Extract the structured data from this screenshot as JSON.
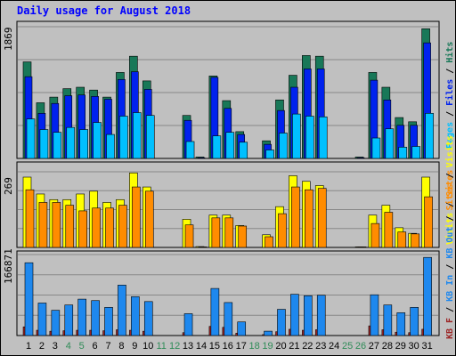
{
  "title": "Daily usage for August 2018",
  "colors": {
    "background": "#c0c0c0",
    "title": "#0000ff",
    "pages": "#00c0ff",
    "files": "#0022ee",
    "hits": "#187858",
    "visits": "#ffff00",
    "sites": "#ff8c00",
    "kb_in": "#1e88ee",
    "kb_out": "#9c2424",
    "weekday_label": "#000000",
    "weekend_label": "#2e8b57"
  },
  "chart_data": [
    {
      "type": "bar",
      "name": "pages-files-hits",
      "ylim": [
        0,
        1869
      ],
      "top_label": "1869",
      "legend": [
        {
          "text": "Pages",
          "color": "#00c0ff"
        },
        {
          "text": " / ",
          "color": "#000000"
        },
        {
          "text": "Files",
          "color": "#0022ee"
        },
        {
          "text": " / ",
          "color": "#000000"
        },
        {
          "text": "Hits",
          "color": "#187858"
        }
      ],
      "categories": [
        "1",
        "2",
        "3",
        "4",
        "5",
        "6",
        "7",
        "8",
        "9",
        "10",
        "11",
        "12",
        "13",
        "14",
        "15",
        "16",
        "17",
        "18",
        "19",
        "20",
        "21",
        "22",
        "23",
        "24",
        "25",
        "26",
        "27",
        "28",
        "29",
        "30",
        "31"
      ],
      "series": [
        {
          "name": "Hits",
          "values": [
            1370,
            790,
            870,
            990,
            1010,
            970,
            870,
            1220,
            1450,
            1100,
            0,
            0,
            610,
            20,
            1170,
            820,
            380,
            0,
            250,
            830,
            1180,
            1460,
            1450,
            0,
            0,
            20,
            1220,
            1010,
            580,
            520,
            1840
          ]
        },
        {
          "name": "Files",
          "values": [
            1160,
            640,
            780,
            890,
            900,
            880,
            840,
            1120,
            1230,
            980,
            0,
            0,
            540,
            10,
            1150,
            710,
            340,
            0,
            200,
            680,
            1010,
            1270,
            1270,
            0,
            0,
            10,
            1110,
            830,
            470,
            470,
            1640
          ]
        },
        {
          "name": "Pages",
          "values": [
            560,
            410,
            370,
            440,
            410,
            510,
            340,
            600,
            650,
            610,
            0,
            0,
            240,
            0,
            320,
            370,
            230,
            0,
            120,
            360,
            630,
            600,
            590,
            0,
            0,
            0,
            290,
            420,
            160,
            170,
            640
          ]
        }
      ]
    },
    {
      "type": "bar",
      "name": "visits-sites",
      "ylim": [
        0,
        269
      ],
      "top_label": "269",
      "legend": [
        {
          "text": "Visits",
          "color": "#ffff00"
        },
        {
          "text": " / ",
          "color": "#000000"
        },
        {
          "text": "Sites",
          "color": "#ff8c00"
        }
      ],
      "categories": [
        "1",
        "2",
        "3",
        "4",
        "5",
        "6",
        "7",
        "8",
        "9",
        "10",
        "11",
        "12",
        "13",
        "14",
        "15",
        "16",
        "17",
        "18",
        "19",
        "20",
        "21",
        "22",
        "23",
        "24",
        "25",
        "26",
        "27",
        "28",
        "29",
        "30",
        "31"
      ],
      "series": [
        {
          "name": "Visits",
          "values": [
            250,
            190,
            170,
            170,
            190,
            200,
            160,
            170,
            265,
            215,
            0,
            0,
            100,
            3,
            115,
            115,
            78,
            0,
            45,
            145,
            255,
            235,
            220,
            0,
            0,
            2,
            115,
            150,
            70,
            50,
            250
          ]
        },
        {
          "name": "Sites",
          "values": [
            205,
            160,
            160,
            150,
            130,
            140,
            140,
            150,
            215,
            200,
            0,
            0,
            80,
            2,
            105,
            105,
            76,
            0,
            38,
            120,
            215,
            205,
            210,
            0,
            0,
            2,
            85,
            125,
            55,
            48,
            180
          ]
        }
      ]
    },
    {
      "type": "bar",
      "name": "kb-in-out",
      "ylim": [
        0,
        166871
      ],
      "top_label": "166871",
      "legend": [
        {
          "text": "KB F",
          "color": "#9c2424"
        },
        {
          "text": " / ",
          "color": "#000000"
        },
        {
          "text": "KB In",
          "color": "#1e88ee"
        },
        {
          "text": " / ",
          "color": "#000000"
        },
        {
          "text": "KB Out",
          "color": "#1e88ee"
        },
        {
          "text": " / ",
          "color": "#000000"
        },
        {
          "text": "Sites",
          "color": "#ff8c00"
        },
        {
          "text": " / ",
          "color": "#000000"
        },
        {
          "text": "Visits",
          "color": "#ffff00"
        }
      ],
      "categories": [
        "1",
        "2",
        "3",
        "4",
        "5",
        "6",
        "7",
        "8",
        "9",
        "10",
        "11",
        "12",
        "13",
        "14",
        "15",
        "16",
        "17",
        "18",
        "19",
        "20",
        "21",
        "22",
        "23",
        "24",
        "25",
        "26",
        "27",
        "28",
        "29",
        "30",
        "31"
      ],
      "series": [
        {
          "name": "KB In",
          "values": [
            150000,
            67000,
            52000,
            63000,
            75000,
            72000,
            58000,
            104000,
            80000,
            70000,
            0,
            0,
            45000,
            0,
            97000,
            68000,
            28000,
            0,
            9000,
            54000,
            85000,
            82000,
            83000,
            0,
            0,
            0,
            84000,
            63000,
            47000,
            58000,
            161000
          ]
        },
        {
          "name": "KB F",
          "values": [
            18000,
            11000,
            9000,
            10000,
            11000,
            11000,
            10000,
            12000,
            11000,
            9000,
            0,
            0,
            6000,
            0,
            19000,
            17000,
            5000,
            0,
            2000,
            8000,
            13000,
            11000,
            12000,
            0,
            0,
            0,
            20000,
            12000,
            7000,
            6000,
            13000
          ]
        }
      ]
    }
  ],
  "days": [
    {
      "label": "1",
      "weekend": false
    },
    {
      "label": "2",
      "weekend": false
    },
    {
      "label": "3",
      "weekend": false
    },
    {
      "label": "4",
      "weekend": true
    },
    {
      "label": "5",
      "weekend": true
    },
    {
      "label": "6",
      "weekend": false
    },
    {
      "label": "7",
      "weekend": false
    },
    {
      "label": "8",
      "weekend": false
    },
    {
      "label": "9",
      "weekend": false
    },
    {
      "label": "10",
      "weekend": false
    },
    {
      "label": "11",
      "weekend": true
    },
    {
      "label": "12",
      "weekend": true
    },
    {
      "label": "13",
      "weekend": false
    },
    {
      "label": "14",
      "weekend": false
    },
    {
      "label": "15",
      "weekend": false
    },
    {
      "label": "16",
      "weekend": false
    },
    {
      "label": "17",
      "weekend": false
    },
    {
      "label": "18",
      "weekend": true
    },
    {
      "label": "19",
      "weekend": true
    },
    {
      "label": "20",
      "weekend": false
    },
    {
      "label": "21",
      "weekend": false
    },
    {
      "label": "22",
      "weekend": false
    },
    {
      "label": "23",
      "weekend": false
    },
    {
      "label": "24",
      "weekend": false
    },
    {
      "label": "25",
      "weekend": true
    },
    {
      "label": "26",
      "weekend": true
    },
    {
      "label": "27",
      "weekend": false
    },
    {
      "label": "28",
      "weekend": false
    },
    {
      "label": "29",
      "weekend": false
    },
    {
      "label": "30",
      "weekend": false
    },
    {
      "label": "31",
      "weekend": false
    }
  ]
}
